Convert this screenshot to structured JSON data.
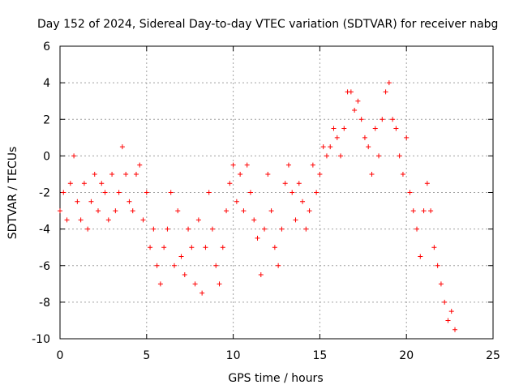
{
  "chart_data": {
    "type": "scatter",
    "title": "Day 152 of 2024, Sidereal Day-to-day VTEC variation (SDTVAR) for receiver nabg",
    "xlabel": "GPS time / hours",
    "ylabel": "SDTVAR / TECUs",
    "xlim": [
      0,
      25
    ],
    "ylim": [
      -10,
      6
    ],
    "xticks": [
      0,
      5,
      10,
      15,
      20,
      25
    ],
    "yticks": [
      -10,
      -8,
      -6,
      -4,
      -2,
      0,
      2,
      4,
      6
    ],
    "grid": true,
    "marker": "+",
    "series": [
      {
        "name": "SDTVAR",
        "color": "#ff0000",
        "x": [
          0.0,
          0.2,
          0.4,
          0.6,
          0.8,
          1.0,
          1.2,
          1.4,
          1.6,
          1.8,
          2.0,
          2.2,
          2.4,
          2.6,
          2.8,
          3.0,
          3.2,
          3.4,
          3.6,
          3.8,
          4.0,
          4.2,
          4.4,
          4.6,
          4.8,
          5.0,
          5.2,
          5.4,
          5.6,
          5.8,
          6.0,
          6.2,
          6.4,
          6.6,
          6.8,
          7.0,
          7.2,
          7.4,
          7.6,
          7.8,
          8.0,
          8.2,
          8.4,
          8.6,
          8.8,
          9.0,
          9.2,
          9.4,
          9.6,
          9.8,
          10.0,
          10.2,
          10.4,
          10.6,
          10.8,
          11.0,
          11.2,
          11.4,
          11.6,
          11.8,
          12.0,
          12.2,
          12.4,
          12.6,
          12.8,
          13.0,
          13.2,
          13.4,
          13.6,
          13.8,
          14.0,
          14.2,
          14.4,
          14.6,
          14.8,
          15.0,
          15.2,
          15.4,
          15.6,
          15.8,
          16.0,
          16.2,
          16.4,
          16.6,
          16.8,
          17.0,
          17.2,
          17.4,
          17.6,
          17.8,
          18.0,
          18.2,
          18.4,
          18.6,
          18.8,
          19.0,
          19.2,
          19.4,
          19.6,
          19.8,
          20.0,
          20.2,
          20.4,
          20.6,
          20.8,
          21.0,
          21.2,
          21.4,
          21.6,
          21.8,
          22.0,
          22.2,
          22.4,
          22.6,
          22.8
        ],
        "y": [
          -3.0,
          -2.0,
          -3.5,
          -1.5,
          0.0,
          -2.5,
          -3.5,
          -1.5,
          -4.0,
          -2.5,
          -1.0,
          -3.0,
          -1.5,
          -2.0,
          -3.5,
          -1.0,
          -3.0,
          -2.0,
          0.5,
          -1.0,
          -2.5,
          -3.0,
          -1.0,
          -0.5,
          -3.5,
          -2.0,
          -5.0,
          -4.0,
          -6.0,
          -7.0,
          -5.0,
          -4.0,
          -2.0,
          -6.0,
          -3.0,
          -5.5,
          -6.5,
          -4.0,
          -5.0,
          -7.0,
          -3.5,
          -7.5,
          -5.0,
          -2.0,
          -4.0,
          -6.0,
          -7.0,
          -5.0,
          -3.0,
          -1.5,
          -0.5,
          -2.5,
          -1.0,
          -3.0,
          -0.5,
          -2.0,
          -3.5,
          -4.5,
          -6.5,
          -4.0,
          -1.0,
          -3.0,
          -5.0,
          -6.0,
          -4.0,
          -1.5,
          -0.5,
          -2.0,
          -3.5,
          -1.5,
          -2.5,
          -4.0,
          -3.0,
          -0.5,
          -2.0,
          -1.0,
          0.5,
          0.0,
          0.5,
          1.5,
          1.0,
          0.0,
          1.5,
          3.5,
          3.5,
          2.5,
          3.0,
          2.0,
          1.0,
          0.5,
          -1.0,
          1.5,
          0.0,
          2.0,
          3.5,
          4.0,
          2.0,
          1.5,
          0.0,
          -1.0,
          1.0,
          -2.0,
          -3.0,
          -4.0,
          -5.5,
          -3.0,
          -1.5,
          -3.0,
          -5.0,
          -6.0,
          -7.0,
          -8.0,
          -9.0,
          -8.5,
          -9.5
        ]
      }
    ]
  }
}
